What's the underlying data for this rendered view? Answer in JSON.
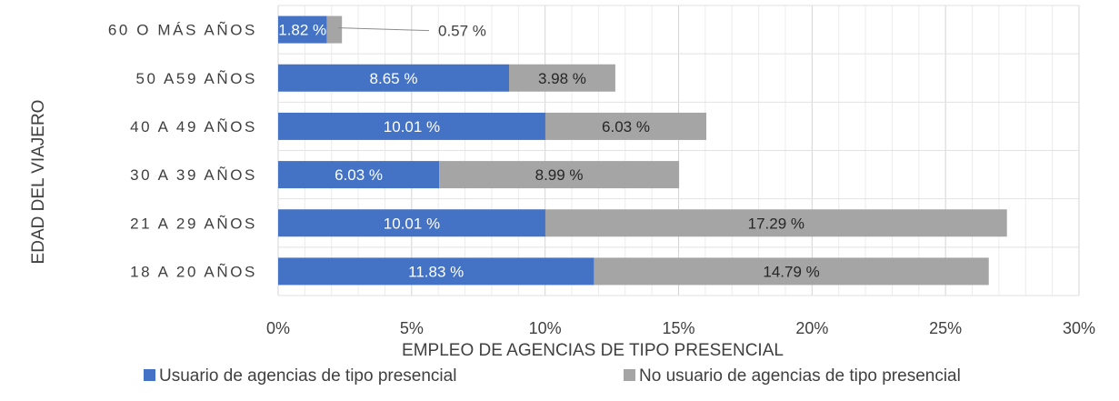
{
  "chart_data": {
    "type": "bar",
    "orientation": "horizontal",
    "stacked": true,
    "title": "",
    "xlabel": "EMPLEO DE AGENCIAS DE TIPO PRESENCIAL",
    "ylabel": "EDAD DEL VIAJERO",
    "xlim": [
      0,
      30
    ],
    "x_ticks": [
      "0%",
      "5%",
      "10%",
      "15%",
      "20%",
      "25%",
      "30%"
    ],
    "grid": true,
    "legend_position": "bottom",
    "categories": [
      "60 O MÁS AÑOS",
      "50 A59 AÑOS",
      "40 A 49 AÑOS",
      "30 A 39 AÑOS",
      "21 A 29 AÑOS",
      "18 A 20 AÑOS"
    ],
    "series": [
      {
        "name": "Usuario de agencias de tipo presencial",
        "color": "#4472C4",
        "values": [
          1.82,
          8.65,
          10.01,
          6.03,
          10.01,
          11.83
        ],
        "labels": [
          "1.82 %",
          "8.65 %",
          "10.01 %",
          "6.03 %",
          "10.01 %",
          "11.83 %"
        ]
      },
      {
        "name": "No usuario de agencias de tipo presencial",
        "color": "#A5A5A5",
        "values": [
          0.57,
          3.98,
          6.03,
          8.99,
          17.29,
          14.79
        ],
        "labels": [
          "0.57 %",
          "3.98 %",
          "6.03 %",
          "8.99 %",
          "17.29 %",
          "14.79 %"
        ]
      }
    ]
  }
}
